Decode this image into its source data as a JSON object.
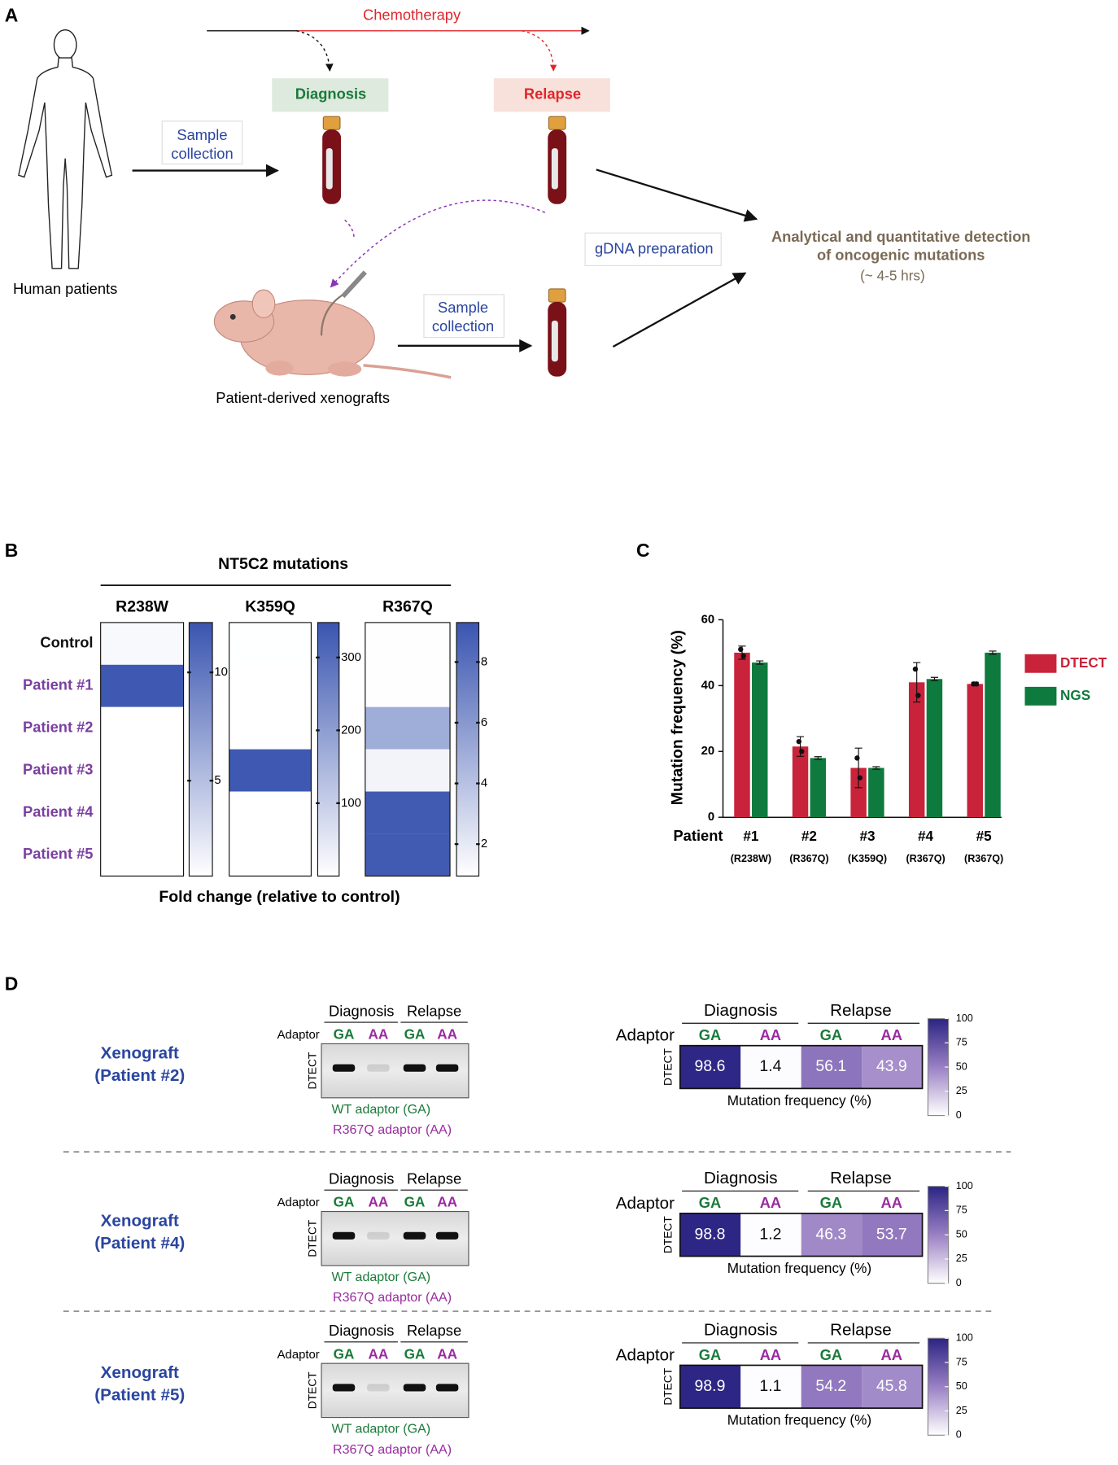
{
  "panel_a": {
    "label": "A",
    "chemotherapy": "Chemotherapy",
    "diagnosis": "Diagnosis",
    "relapse": "Relapse",
    "sample_collection_1": [
      "Sample",
      "collection"
    ],
    "human": "Human patients",
    "gdna": "gDNA preparation",
    "xenografts": "Patient-derived xenografts",
    "sample_collection_2": [
      "Sample",
      "collection"
    ],
    "analysis": [
      "Analytical and quantitative detection",
      "of oncogenic mutations"
    ],
    "duration": "(~ 4-5 hrs)"
  },
  "chart_data": [
    {
      "type": "heatmap",
      "label": "B",
      "title": "NT5C2 mutations",
      "rows": [
        "Control",
        "Patient #1",
        "Patient #2",
        "Patient #3",
        "Patient #4",
        "Patient #5"
      ],
      "xlabel": "Fold change (relative to control)",
      "color": [
        "#ffffff",
        "#3a55b0"
      ],
      "panels": [
        {
          "name": "R238W",
          "values": [
            1,
            12,
            0.6,
            0.6,
            0.6,
            0.6
          ],
          "zlim": [
            0.6,
            12.3
          ],
          "zticks": [
            5,
            10
          ]
        },
        {
          "name": "K359Q",
          "values": [
            1,
            0,
            0,
            340,
            0,
            0
          ],
          "zlim": [
            0,
            348
          ],
          "zticks": [
            100,
            200,
            300
          ]
        },
        {
          "name": "R367Q",
          "values": [
            1,
            1,
            5,
            1.5,
            9,
            9
          ],
          "zlim": [
            0.95,
            9.3
          ],
          "zticks": [
            2,
            4,
            6,
            8
          ]
        }
      ]
    },
    {
      "type": "bar",
      "label": "C",
      "xlabel": "Patient",
      "ylabel": "Mutation frequency (%)",
      "categories": [
        "#1",
        "#2",
        "#3",
        "#4",
        "#5"
      ],
      "sublabels": [
        "(R238W)",
        "(R367Q)",
        "(K359Q)",
        "(R367Q)",
        "(R367Q)"
      ],
      "ylim": [
        0,
        60
      ],
      "yticks": [
        0,
        20,
        40,
        60
      ],
      "legend": "right",
      "series": [
        {
          "name": "DTECT",
          "color": "#c8233a",
          "values": [
            50,
            21.5,
            15,
            41,
            40.5
          ],
          "errors": [
            2,
            3,
            6,
            6,
            0.5
          ],
          "points": [
            [
              51,
              49
            ],
            [
              23,
              20
            ],
            [
              18,
              12
            ],
            [
              45,
              37
            ],
            [
              40.5,
              40.5
            ]
          ]
        },
        {
          "name": "NGS",
          "color": "#0e7a3d",
          "values": [
            47,
            18,
            15,
            42,
            50
          ],
          "errors": [
            0.5,
            0.4,
            0.4,
            0.5,
            0.5
          ]
        }
      ]
    },
    {
      "type": "heatmap_row",
      "label": "D",
      "title": [
        "Xenograft",
        "(Patient #2)"
      ],
      "groups": [
        "Diagnosis",
        "Relapse"
      ],
      "columns": [
        "GA",
        "AA",
        "GA",
        "AA"
      ],
      "column_colors": [
        "#1a7a3a",
        "#9a2aa0",
        "#1a7a3a",
        "#9a2aa0"
      ],
      "adaptor": "Adaptor",
      "ylabel": "DTECT",
      "legend": [
        "WT adaptor (GA)",
        "R367Q adaptor (AA)"
      ],
      "xlabel": "Mutation frequency (%)",
      "values": [
        98.6,
        1.4,
        56.1,
        43.9
      ],
      "zlim": [
        0,
        100
      ],
      "zticks": [
        0,
        25,
        50,
        75,
        100
      ]
    },
    {
      "type": "heatmap_row",
      "title": [
        "Xenograft",
        "(Patient #4)"
      ],
      "groups": [
        "Diagnosis",
        "Relapse"
      ],
      "columns": [
        "GA",
        "AA",
        "GA",
        "AA"
      ],
      "column_colors": [
        "#1a7a3a",
        "#9a2aa0",
        "#1a7a3a",
        "#9a2aa0"
      ],
      "adaptor": "Adaptor",
      "ylabel": "DTECT",
      "legend": [
        "WT adaptor (GA)",
        "R367Q adaptor (AA)"
      ],
      "xlabel": "Mutation frequency (%)",
      "values": [
        98.8,
        1.2,
        46.3,
        53.7
      ],
      "zlim": [
        0,
        100
      ],
      "zticks": [
        0,
        25,
        50,
        75,
        100
      ]
    },
    {
      "type": "heatmap_row",
      "title": [
        "Xenograft",
        "(Patient #5)"
      ],
      "groups": [
        "Diagnosis",
        "Relapse"
      ],
      "columns": [
        "GA",
        "AA",
        "GA",
        "AA"
      ],
      "column_colors": [
        "#1a7a3a",
        "#9a2aa0",
        "#1a7a3a",
        "#9a2aa0"
      ],
      "adaptor": "Adaptor",
      "ylabel": "DTECT",
      "legend": [
        "WT adaptor (GA)",
        "R367Q adaptor (AA)"
      ],
      "xlabel": "Mutation frequency (%)",
      "values": [
        98.9,
        1.1,
        54.2,
        45.8
      ],
      "zlim": [
        0,
        100
      ],
      "zticks": [
        0,
        25,
        50,
        75,
        100
      ]
    }
  ]
}
